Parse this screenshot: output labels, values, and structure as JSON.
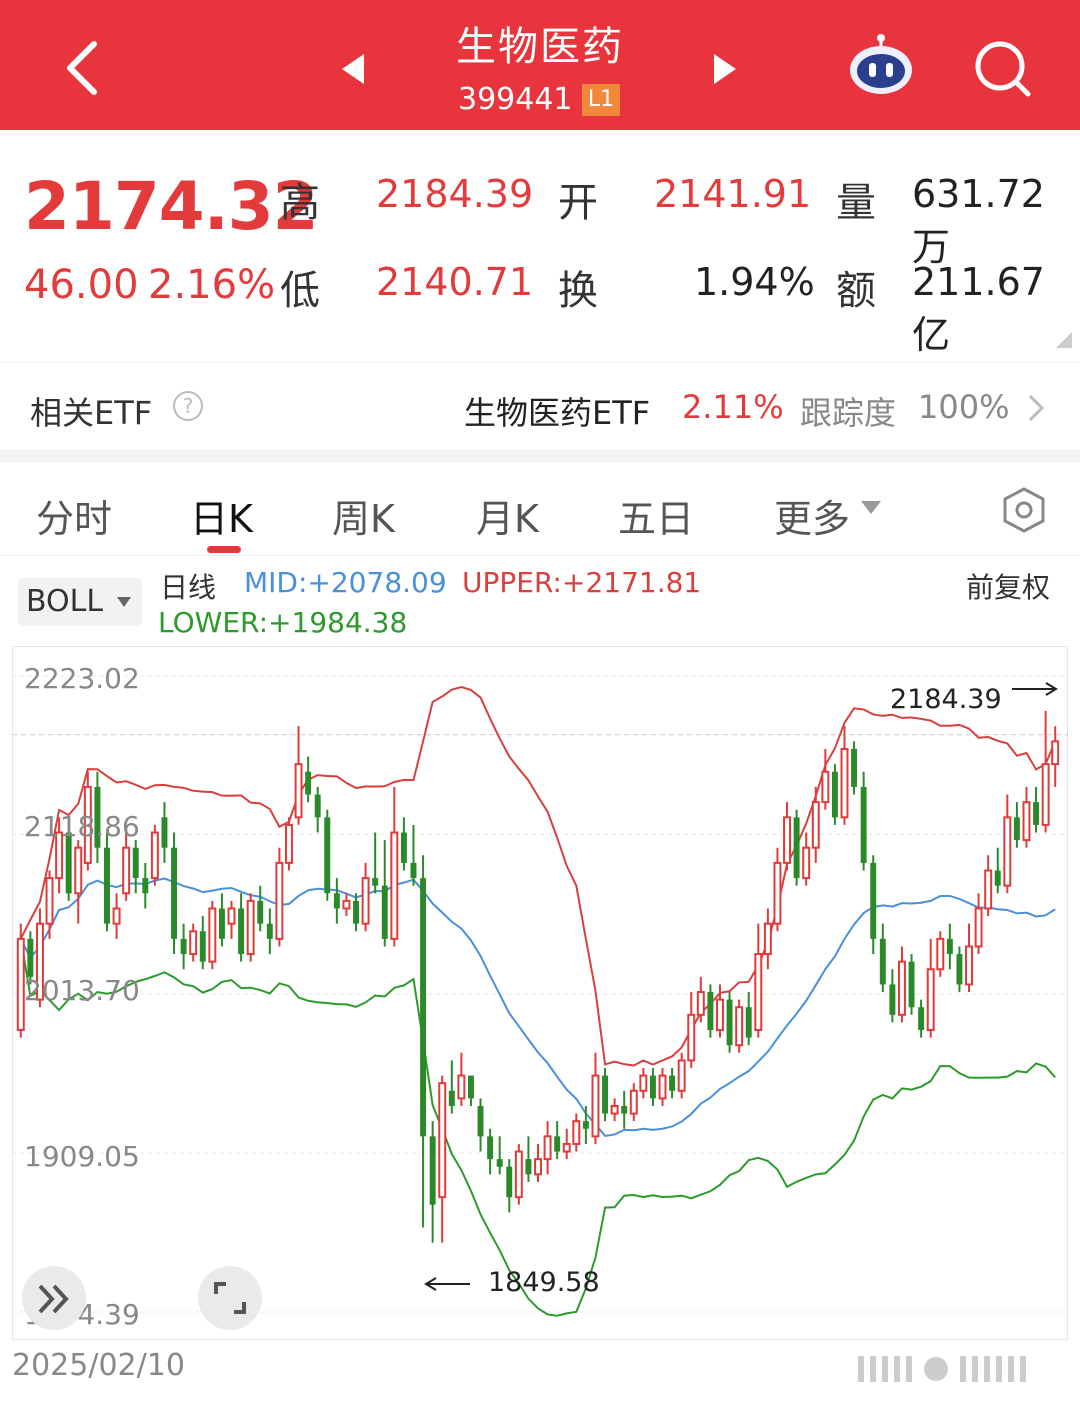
{
  "header": {
    "title": "生物医药",
    "code": "399441",
    "level_badge": "L1",
    "icons": {
      "back": "back-chevron-icon",
      "prev": "prev-triangle-icon",
      "next": "next-triangle-icon",
      "robot": "robot-assistant-icon",
      "search": "search-icon"
    }
  },
  "quote": {
    "price": "2174.32",
    "change": "46.00",
    "change_pct": "2.16%",
    "high_label": "高",
    "high": "2184.39",
    "open_label": "开",
    "open": "2141.91",
    "volume_label": "量",
    "volume": "631.72万",
    "low_label": "低",
    "low": "2140.71",
    "turnover_label": "换",
    "turnover": "1.94%",
    "amount_label": "额",
    "amount": "211.67亿"
  },
  "etf": {
    "label": "相关ETF",
    "name": "生物医药ETF",
    "pct": "2.11%",
    "tracking_label": "跟踪度",
    "tracking": "100%"
  },
  "tabs": [
    {
      "label": "分时",
      "active": false
    },
    {
      "label": "日K",
      "active": true
    },
    {
      "label": "周K",
      "active": false
    },
    {
      "label": "月K",
      "active": false
    },
    {
      "label": "五日",
      "active": false
    },
    {
      "label": "更多",
      "active": false
    }
  ],
  "indicator": {
    "selector": "BOLL",
    "period": "日线",
    "mid": "MID:+2078.09",
    "upper": "UPPER:+2171.81",
    "lower": "LOWER:+1984.38",
    "adjust": "前复权"
  },
  "chart_data": {
    "type": "candlestick",
    "y_ticks": [
      "2223.02",
      "2118.86",
      "2013.70",
      "1909.05",
      "1804.39"
    ],
    "ylim": [
      1804.39,
      2223.02
    ],
    "start_date": "2025/02/10",
    "annotations": [
      {
        "text": "2184.39",
        "kind": "high"
      },
      {
        "text": "1849.58",
        "kind": "low"
      }
    ],
    "colors": {
      "up": "#e03a3a",
      "down": "#2a8a2a",
      "mid": "#4a90d9",
      "upper": "#d84040",
      "lower": "#2e9a2e"
    },
    "bars": [
      [
        1990,
        2050,
        1985,
        2060
      ],
      [
        2050,
        2025,
        2020,
        2055
      ],
      [
        2010,
        2060,
        2005,
        2070
      ],
      [
        2060,
        2090,
        2050,
        2095
      ],
      [
        2090,
        2120,
        2080,
        2130
      ],
      [
        2120,
        2080,
        2075,
        2125
      ],
      [
        2080,
        2110,
        2060,
        2115
      ],
      [
        2100,
        2150,
        2095,
        2160
      ],
      [
        2150,
        2110,
        2100,
        2160
      ],
      [
        2110,
        2060,
        2055,
        2120
      ],
      [
        2060,
        2070,
        2050,
        2080
      ],
      [
        2080,
        2110,
        2075,
        2120
      ],
      [
        2110,
        2090,
        2080,
        2115
      ],
      [
        2090,
        2080,
        2070,
        2100
      ],
      [
        2090,
        2120,
        2085,
        2125
      ],
      [
        2130,
        2110,
        2100,
        2140
      ],
      [
        2110,
        2050,
        2040,
        2120
      ],
      [
        2050,
        2040,
        2030,
        2060
      ],
      [
        2040,
        2055,
        2035,
        2060
      ],
      [
        2055,
        2035,
        2030,
        2065
      ],
      [
        2035,
        2070,
        2030,
        2075
      ],
      [
        2070,
        2050,
        2045,
        2080
      ],
      [
        2060,
        2070,
        2050,
        2075
      ],
      [
        2070,
        2040,
        2035,
        2080
      ],
      [
        2040,
        2075,
        2035,
        2080
      ],
      [
        2075,
        2060,
        2055,
        2085
      ],
      [
        2060,
        2050,
        2040,
        2070
      ],
      [
        2050,
        2100,
        2045,
        2110
      ],
      [
        2100,
        2125,
        2095,
        2130
      ],
      [
        2130,
        2165,
        2125,
        2190
      ],
      [
        2160,
        2145,
        2140,
        2170
      ],
      [
        2145,
        2130,
        2120,
        2150
      ],
      [
        2130,
        2080,
        2075,
        2135
      ],
      [
        2080,
        2070,
        2060,
        2090
      ],
      [
        2070,
        2075,
        2065,
        2080
      ],
      [
        2075,
        2060,
        2055,
        2080
      ],
      [
        2060,
        2090,
        2055,
        2100
      ],
      [
        2090,
        2085,
        2080,
        2120
      ],
      [
        2085,
        2050,
        2045,
        2115
      ],
      [
        2050,
        2120,
        2045,
        2150
      ],
      [
        2120,
        2100,
        2095,
        2130
      ],
      [
        2100,
        2090,
        2085,
        2125
      ],
      [
        2090,
        1920,
        1860,
        2105
      ],
      [
        1920,
        1875,
        1850,
        1930
      ],
      [
        1880,
        1955,
        1850,
        1960
      ],
      [
        1950,
        1940,
        1935,
        1970
      ],
      [
        1945,
        1960,
        1940,
        1975
      ],
      [
        1960,
        1945,
        1940,
        1960
      ],
      [
        1940,
        1920,
        1910,
        1945
      ],
      [
        1920,
        1905,
        1895,
        1925
      ],
      [
        1905,
        1900,
        1895,
        1920
      ],
      [
        1900,
        1880,
        1870,
        1905
      ],
      [
        1880,
        1910,
        1875,
        1915
      ],
      [
        1905,
        1895,
        1890,
        1920
      ],
      [
        1895,
        1905,
        1890,
        1915
      ],
      [
        1905,
        1920,
        1895,
        1930
      ],
      [
        1920,
        1910,
        1905,
        1930
      ],
      [
        1910,
        1915,
        1905,
        1925
      ],
      [
        1915,
        1930,
        1910,
        1935
      ],
      [
        1930,
        1925,
        1915,
        1940
      ],
      [
        1920,
        1960,
        1915,
        1975
      ],
      [
        1960,
        1935,
        1930,
        1965
      ],
      [
        1935,
        1940,
        1930,
        1945
      ],
      [
        1940,
        1935,
        1925,
        1950
      ],
      [
        1935,
        1950,
        1930,
        1955
      ],
      [
        1950,
        1960,
        1945,
        1965
      ],
      [
        1960,
        1945,
        1940,
        1965
      ],
      [
        1945,
        1960,
        1940,
        1965
      ],
      [
        1960,
        1950,
        1945,
        1965
      ],
      [
        1950,
        1970,
        1945,
        1975
      ],
      [
        1970,
        2000,
        1965,
        2015
      ],
      [
        2000,
        2015,
        1995,
        2025
      ],
      [
        2015,
        1990,
        1985,
        2020
      ],
      [
        1990,
        2010,
        1985,
        2020
      ],
      [
        2010,
        1980,
        1975,
        2015
      ],
      [
        1980,
        2005,
        1975,
        2010
      ],
      [
        2005,
        1985,
        1980,
        2015
      ],
      [
        1990,
        2040,
        1985,
        2060
      ],
      [
        2040,
        2060,
        2030,
        2070
      ],
      [
        2060,
        2100,
        2055,
        2110
      ],
      [
        2100,
        2130,
        2095,
        2140
      ],
      [
        2130,
        2090,
        2085,
        2135
      ],
      [
        2090,
        2110,
        2085,
        2120
      ],
      [
        2110,
        2140,
        2100,
        2150
      ],
      [
        2140,
        2160,
        2135,
        2175
      ],
      [
        2160,
        2130,
        2125,
        2165
      ],
      [
        2130,
        2175,
        2125,
        2190
      ],
      [
        2175,
        2150,
        2145,
        2180
      ],
      [
        2150,
        2100,
        2095,
        2160
      ],
      [
        2100,
        2050,
        2040,
        2105
      ],
      [
        2050,
        2020,
        2015,
        2060
      ],
      [
        2020,
        2000,
        1995,
        2030
      ],
      [
        2000,
        2035,
        1995,
        2045
      ],
      [
        2035,
        2005,
        2000,
        2040
      ],
      [
        2005,
        1990,
        1985,
        2010
      ],
      [
        1990,
        2030,
        1985,
        2050
      ],
      [
        2030,
        2050,
        2025,
        2055
      ],
      [
        2050,
        2040,
        2030,
        2060
      ],
      [
        2040,
        2020,
        2015,
        2045
      ],
      [
        2020,
        2045,
        2015,
        2060
      ],
      [
        2045,
        2070,
        2040,
        2080
      ],
      [
        2070,
        2095,
        2065,
        2105
      ],
      [
        2095,
        2085,
        2080,
        2110
      ],
      [
        2085,
        2130,
        2080,
        2145
      ],
      [
        2130,
        2115,
        2110,
        2140
      ],
      [
        2115,
        2140,
        2110,
        2150
      ],
      [
        2140,
        2125,
        2120,
        2150
      ],
      [
        2125,
        2165,
        2120,
        2200
      ],
      [
        2165,
        2180,
        2150,
        2190
      ]
    ]
  }
}
